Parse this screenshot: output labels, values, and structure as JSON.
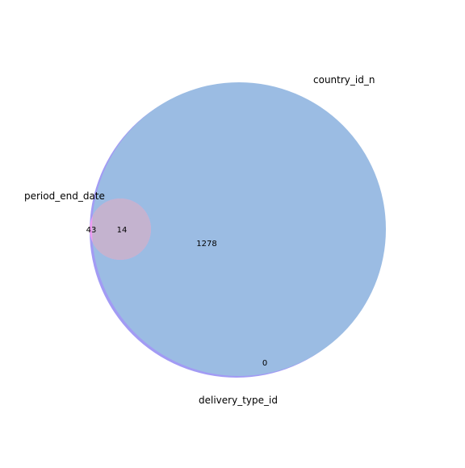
{
  "diagram": {
    "type": "venn3",
    "sets": [
      {
        "key": "country",
        "name": "country_id_n",
        "color": "#9fb3e8"
      },
      {
        "key": "delivery",
        "name": "delivery_type_id",
        "color": "#a29bf4"
      },
      {
        "key": "period",
        "name": "period_end_date",
        "color": "#f2a6f4"
      }
    ],
    "regions": {
      "country_delivery": "1278",
      "period_only": "43",
      "all_three": "14",
      "delivery_only": "0"
    },
    "colors": {
      "main_overlap": "#9bbce3",
      "period_overlap": "#c4b3cf",
      "period_only": "#ee9cf2"
    }
  }
}
